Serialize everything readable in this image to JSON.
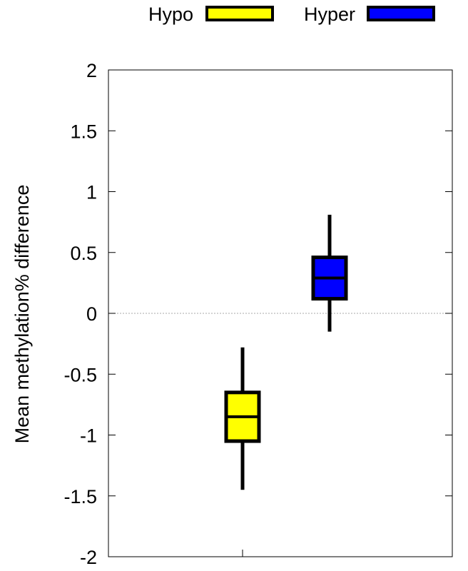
{
  "chart_data": {
    "type": "box",
    "ylabel": "Mean methylation% difference",
    "ylim": [
      -2,
      2
    ],
    "yticks": [
      2,
      1.5,
      1,
      0.5,
      0,
      -0.5,
      -1,
      -1.5,
      -2
    ],
    "ytick_labels": [
      "2",
      "1.5",
      "1",
      "0.5",
      "0",
      "-0.5",
      "-1",
      "-1.5",
      "-2"
    ],
    "zero_line": true,
    "legend_placement": "top",
    "series": [
      {
        "name": "Hypo",
        "color": "#ffff00",
        "min": -1.45,
        "q1": -1.05,
        "median": -0.85,
        "q3": -0.65,
        "max": -0.28
      },
      {
        "name": "Hyper",
        "color": "#0000ff",
        "min": -0.15,
        "q1": 0.12,
        "median": 0.29,
        "q3": 0.46,
        "max": 0.81
      }
    ]
  }
}
